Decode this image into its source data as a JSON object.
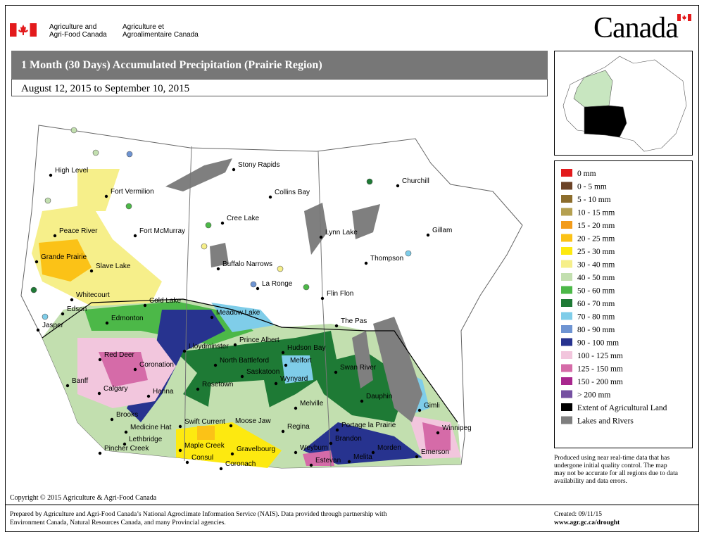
{
  "header": {
    "department_en": [
      "Agriculture and",
      "Agri-Food Canada"
    ],
    "department_fr": [
      "Agriculture et",
      "Agroalimentaire Canada"
    ],
    "wordmark": "Canada"
  },
  "title": "1 Month (30 Days) Accumulated Precipitation (Prairie Region)",
  "date_range": "August 12, 2015 to September 10, 2015",
  "legend": [
    {
      "label": "0 mm",
      "color": "#e31a1c"
    },
    {
      "label": "0 - 5 mm",
      "color": "#6b4226"
    },
    {
      "label": "5 - 10 mm",
      "color": "#8c6d2c"
    },
    {
      "label": "10 - 15 mm",
      "color": "#b5a050"
    },
    {
      "label": "15 - 20 mm",
      "color": "#f39c1a"
    },
    {
      "label": "20 - 25 mm",
      "color": "#fbc217"
    },
    {
      "label": "25 - 30 mm",
      "color": "#fde910"
    },
    {
      "label": "30 - 40 mm",
      "color": "#f6ef8a"
    },
    {
      "label": "40 - 50 mm",
      "color": "#c2dfaf"
    },
    {
      "label": "50 - 60 mm",
      "color": "#4cb848"
    },
    {
      "label": "60 - 70 mm",
      "color": "#1e7a35"
    },
    {
      "label": "70 - 80 mm",
      "color": "#7fcde9"
    },
    {
      "label": "80 - 90 mm",
      "color": "#6e94d2"
    },
    {
      "label": "90 - 100 mm",
      "color": "#27338f"
    },
    {
      "label": "100 - 125 mm",
      "color": "#f2c6dd"
    },
    {
      "label": "125 - 150 mm",
      "color": "#d56ba8"
    },
    {
      "label": "150 - 200 mm",
      "color": "#a8278e"
    },
    {
      "label": "> 200 mm",
      "color": "#7550a1"
    },
    {
      "label": "Extent of Agricultural Land",
      "color": "#000000"
    },
    {
      "label": "Lakes and Rivers",
      "color": "#7f7f7f"
    }
  ],
  "map": {
    "cities": [
      "High Level",
      "Fort Vermilion",
      "Peace River",
      "Fort McMurray",
      "Grande Prairie",
      "Slave Lake",
      "Whitecourt",
      "Edson",
      "Edmonton",
      "Cold Lake",
      "Jasper",
      "Red Deer",
      "Coronation",
      "Banff",
      "Calgary",
      "Hanna",
      "Brooks",
      "Medicine Hat",
      "Lethbridge",
      "Pincher Creek",
      "Swift Current",
      "Maple Creek",
      "Consul",
      "Gravelbourg",
      "Coronach",
      "Moose Jaw",
      "Regina",
      "Weyburn",
      "Estevan",
      "Rosetown",
      "Saskatoon",
      "North Battleford",
      "Lloydminster",
      "Meadow Lake",
      "Prince Albert",
      "Melfort",
      "Hudson Bay",
      "Wynyard",
      "Melville",
      "Swan River",
      "Dauphin",
      "Portage la Prairie",
      "Brandon",
      "Melita",
      "Morden",
      "Winnipeg",
      "Emerson",
      "Gimli",
      "The Pas",
      "Flin Flon",
      "La Ronge",
      "Buffalo Narrows",
      "Cree Lake",
      "Collins Bay",
      "Stony Rapids",
      "Lynn Lake",
      "Thompson",
      "Churchill",
      "Gillam"
    ]
  },
  "note": [
    "Produced using near real-time data that has",
    "undergone initial quality control.  The map",
    "may not be accurate for all regions due to data",
    "availability and data errors."
  ],
  "copyright": "Copyright © 2015 Agriculture & Agri-Food Canada",
  "footer": {
    "prepared": [
      "Prepared by Agriculture and Agri-Food Canada’s National Agroclimate Information Service (NAIS).   Data provided through partnership with",
      "Environment Canada, Natural Resources Canada, and many Provincial agencies."
    ],
    "created": "Created: 09/11/15",
    "url": "www.agr.gc.ca/drought"
  }
}
